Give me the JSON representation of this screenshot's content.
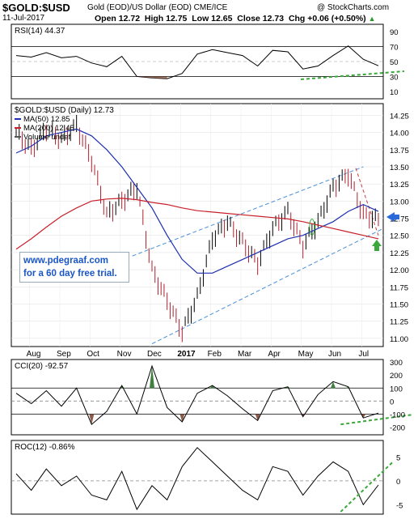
{
  "header": {
    "symbol": "$GOLD:$USD",
    "description": "Gold (EOD)/US Dollar (EOD) CME/ICE",
    "brand": "@ StockCharts.com",
    "date": "11-Jul-2017",
    "open": "Open 12.72",
    "high": "High 12.75",
    "low": "Low 12.65",
    "close": "Close 12.73",
    "change": "Chg +0.06 (+0.50%)",
    "change_arrow": "▲"
  },
  "promo": {
    "line1": "www.pdegraaf.com",
    "line2": "for a 60 day free  trial."
  },
  "colors": {
    "price": "#000000",
    "up_bar": "#000000",
    "down_bar": "#b0202f",
    "ma50": "#1e2fb0",
    "ma200": "#c8202a",
    "channel": "#4a8fd8",
    "dashed_red": "#c04040",
    "green_arrow": "#3aa83a",
    "blue_arrow": "#2a6ad8",
    "fill_pos": "#3f7f3f",
    "fill_neg": "#8b5a4a"
  },
  "chart_data": [
    {
      "type": "line",
      "panel": "RSI",
      "title": "RSI(14) 44.37",
      "y_ticks": [
        "90",
        "70",
        "50",
        "30",
        "10"
      ],
      "ylim": [
        0,
        100
      ],
      "reference_lines": [
        70,
        30
      ],
      "x": [
        "Jul 14",
        "Aug 1",
        "Aug 15",
        "Sep 1",
        "Sep 15",
        "Oct 1",
        "Oct 15",
        "Nov 1",
        "Nov 15",
        "Dec 1",
        "Dec 15",
        "Jan 1",
        "Jan 15",
        "Feb 1",
        "Feb 15",
        "Mar 1",
        "Mar 15",
        "Apr 1",
        "Apr 15",
        "May 1",
        "May 15",
        "Jun 1",
        "Jun 15",
        "Jul 1",
        "Jul 11"
      ],
      "values": [
        58,
        56,
        62,
        55,
        57,
        48,
        43,
        57,
        30,
        28,
        27,
        34,
        60,
        66,
        62,
        58,
        44,
        65,
        63,
        40,
        44,
        58,
        71,
        53,
        44.37
      ]
    },
    {
      "type": "line",
      "panel": "price",
      "title": "$GOLD:$USD (Daily) 12.73",
      "legend": [
        "MA(50) 12.85",
        "MA(200) 12.45",
        "Volume undef"
      ],
      "y_ticks": [
        "14.25",
        "14.00",
        "13.75",
        "13.50",
        "13.25",
        "13.00",
        "12.75",
        "12.50",
        "12.25",
        "12.00",
        "11.75",
        "11.50",
        "11.25",
        "11.00"
      ],
      "ylim": [
        10.88,
        14.42
      ],
      "x_labels": [
        "Aug",
        "Sep",
        "Oct",
        "Nov",
        "Dec",
        "2017",
        "Feb",
        "Mar",
        "Apr",
        "May",
        "Jun",
        "Jul"
      ],
      "x": [
        "Jul 14",
        "Aug 1",
        "Aug 15",
        "Sep 1",
        "Sep 15",
        "Oct 1",
        "Oct 15",
        "Nov 1",
        "Nov 15",
        "Dec 1",
        "Dec 15",
        "Jan 1",
        "Jan 15",
        "Feb 1",
        "Feb 15",
        "Mar 1",
        "Mar 15",
        "Apr 1",
        "Apr 15",
        "May 1",
        "May 15",
        "Jun 1",
        "Jun 15",
        "Jul 1",
        "Jul 11"
      ],
      "series": [
        {
          "name": "$GOLD:$USD",
          "values": [
            14.0,
            13.75,
            14.05,
            13.9,
            14.1,
            13.6,
            12.8,
            13.0,
            13.2,
            12.0,
            11.55,
            11.1,
            11.6,
            12.45,
            12.7,
            12.4,
            12.1,
            12.6,
            12.85,
            12.35,
            12.7,
            13.2,
            13.4,
            12.8,
            12.73
          ]
        },
        {
          "name": "MA(50) 12.85",
          "values": [
            13.7,
            13.8,
            13.95,
            14.0,
            14.05,
            13.95,
            13.75,
            13.5,
            13.2,
            12.9,
            12.5,
            12.15,
            11.95,
            11.95,
            12.05,
            12.15,
            12.25,
            12.35,
            12.45,
            12.5,
            12.6,
            12.7,
            12.85,
            12.95,
            12.85
          ]
        },
        {
          "name": "MA(200) 12.45",
          "values": [
            12.3,
            12.45,
            12.62,
            12.78,
            12.9,
            13.0,
            13.03,
            13.04,
            13.02,
            12.98,
            12.95,
            12.9,
            12.86,
            12.84,
            12.82,
            12.8,
            12.78,
            12.76,
            12.74,
            12.7,
            12.65,
            12.6,
            12.55,
            12.5,
            12.45
          ]
        }
      ]
    },
    {
      "type": "line",
      "panel": "CCI",
      "title": "CCI(20) -92.57",
      "y_ticks": [
        "300",
        "200",
        "100",
        "0",
        "-100",
        "-200"
      ],
      "ylim": [
        -260,
        320
      ],
      "reference_lines": [
        100,
        0,
        -100
      ],
      "x": [
        "Jul 14",
        "Aug 1",
        "Aug 15",
        "Sep 1",
        "Sep 15",
        "Oct 1",
        "Oct 15",
        "Nov 1",
        "Nov 15",
        "Dec 1",
        "Dec 15",
        "Jan 1",
        "Jan 15",
        "Feb 1",
        "Feb 15",
        "Mar 1",
        "Mar 15",
        "Apr 1",
        "Apr 15",
        "May 1",
        "May 15",
        "Jun 1",
        "Jun 15",
        "Jul 1",
        "Jul 11"
      ],
      "values": [
        60,
        -20,
        80,
        -40,
        100,
        -180,
        -80,
        120,
        -100,
        270,
        -50,
        -160,
        60,
        120,
        40,
        -60,
        -150,
        80,
        110,
        -120,
        50,
        150,
        110,
        -130,
        -92.57
      ]
    },
    {
      "type": "line",
      "panel": "ROC",
      "title": "ROC(12) -0.86%",
      "y_ticks": [
        "5",
        "0",
        "-5"
      ],
      "ylim": [
        -7,
        8.5
      ],
      "reference_lines": [
        0
      ],
      "x": [
        "Jul 14",
        "Aug 1",
        "Aug 15",
        "Sep 1",
        "Sep 15",
        "Oct 1",
        "Oct 15",
        "Nov 1",
        "Nov 15",
        "Dec 1",
        "Dec 15",
        "Jan 1",
        "Jan 15",
        "Feb 1",
        "Feb 15",
        "Mar 1",
        "Mar 15",
        "Apr 1",
        "Apr 15",
        "May 1",
        "May 15",
        "Jun 1",
        "Jun 15",
        "Jul 1",
        "Jul 11"
      ],
      "values": [
        1.5,
        -2,
        2.5,
        -1,
        1,
        -3,
        -4,
        2,
        -6,
        -1,
        -4,
        3,
        7,
        4,
        1,
        -2,
        -4,
        3,
        2,
        -3,
        1,
        4,
        2,
        -5,
        -0.86
      ]
    }
  ]
}
